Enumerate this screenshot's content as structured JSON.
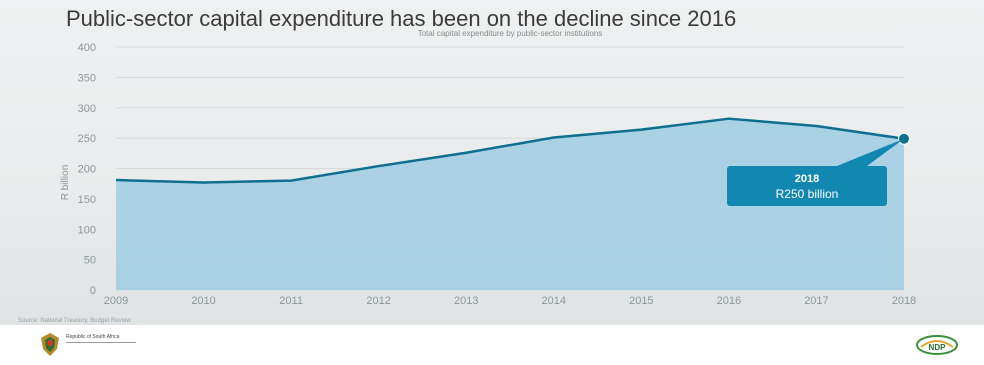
{
  "header": {
    "title": "Public-sector capital expenditure has been on the decline since 2016",
    "subtitle": "Total capital expenditure by public-sector institutions"
  },
  "source": "Source: National Treasury, Budget Review",
  "footer": {
    "dept_name": "Republic of South Africa",
    "logo_text": "NDP"
  },
  "colors": {
    "area": "#9fcde3",
    "line": "#0e6f8f",
    "callout": "#1287b0",
    "callout_text": "#ffffff",
    "axis_text": "#8f979b",
    "grid": "#d6dadc"
  },
  "chart_data": {
    "type": "area",
    "title": "Public-sector capital expenditure has been on the decline since 2016",
    "subtitle": "Total capital expenditure by public-sector institutions",
    "xlabel": "",
    "ylabel": "R billion",
    "x": [
      "2009",
      "2010",
      "2011",
      "2012",
      "2013",
      "2014",
      "2015",
      "2016",
      "2017",
      "2018"
    ],
    "series": [
      {
        "values": [
          181,
          177,
          180,
          204,
          226,
          251,
          264,
          282,
          270,
          249
        ]
      }
    ],
    "ylim": [
      0,
      400
    ],
    "yticks": [
      "0",
      "50",
      "100",
      "150",
      "200",
      "250",
      "300",
      "350",
      "400"
    ],
    "grid": true,
    "annotation": {
      "index": 9,
      "year": "2018",
      "label": "R250 billion"
    }
  }
}
